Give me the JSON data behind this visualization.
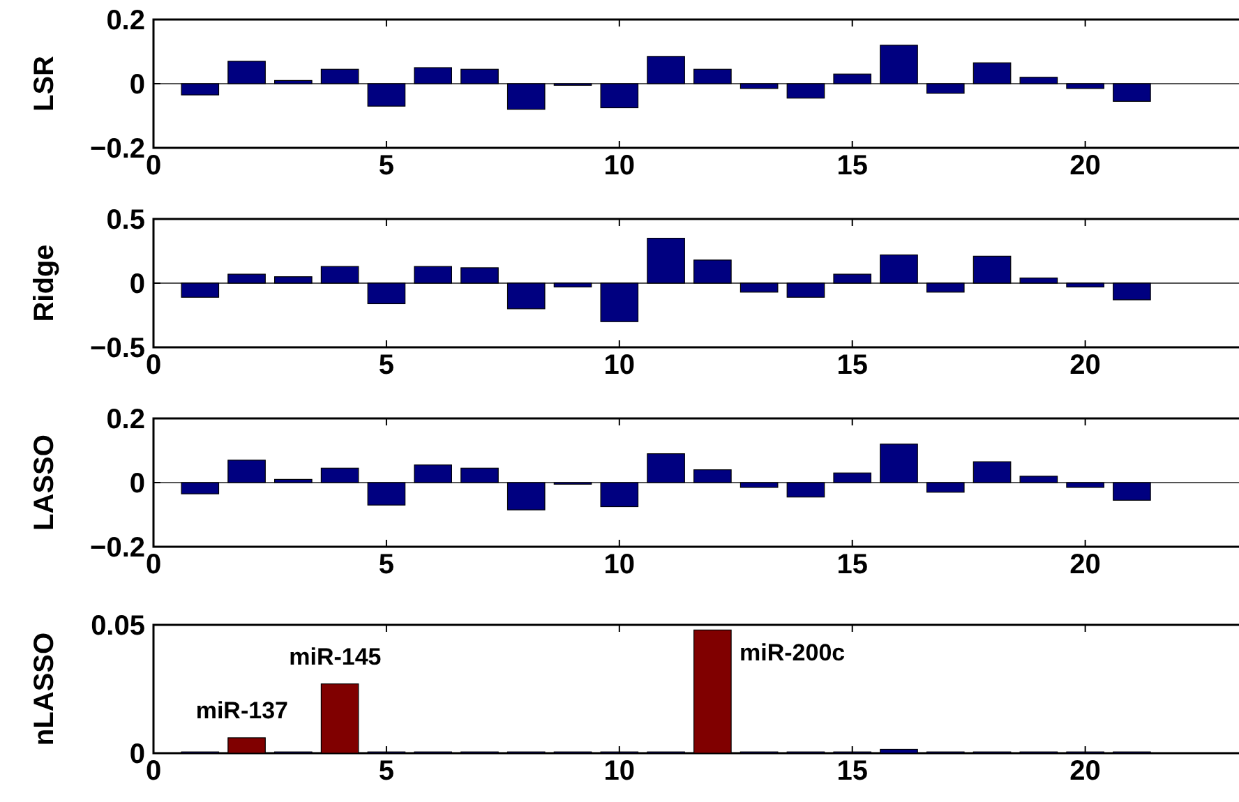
{
  "chart_data": [
    {
      "type": "bar",
      "ylabel": "LSR",
      "x": [
        1,
        2,
        3,
        4,
        5,
        6,
        7,
        8,
        9,
        10,
        11,
        12,
        13,
        14,
        15,
        16,
        17,
        18,
        19,
        20,
        21
      ],
      "values": [
        -0.035,
        0.07,
        0.01,
        0.045,
        -0.07,
        0.05,
        0.045,
        -0.08,
        -0.005,
        -0.075,
        0.085,
        0.045,
        -0.015,
        -0.045,
        0.03,
        0.12,
        -0.03,
        0.065,
        0.02,
        -0.015,
        -0.055
      ],
      "color": "#000080",
      "xlim": [
        0,
        23.3
      ],
      "xticks": [
        0,
        5,
        10,
        15,
        20
      ],
      "ylim": [
        -0.2,
        0.2
      ],
      "yticks": [
        -0.2,
        0,
        0.2
      ],
      "ref_lines": [
        {
          "axis": "y",
          "value": 0,
          "color": "#555555"
        }
      ]
    },
    {
      "type": "bar",
      "ylabel": "Ridge",
      "x": [
        1,
        2,
        3,
        4,
        5,
        6,
        7,
        8,
        9,
        10,
        11,
        12,
        13,
        14,
        15,
        16,
        17,
        18,
        19,
        20,
        21
      ],
      "values": [
        -0.11,
        0.07,
        0.05,
        0.13,
        -0.16,
        0.13,
        0.12,
        -0.2,
        -0.03,
        -0.3,
        0.35,
        0.18,
        -0.07,
        -0.11,
        0.07,
        0.22,
        -0.07,
        0.21,
        0.04,
        -0.03,
        -0.13
      ],
      "color": "#000080",
      "xlim": [
        0,
        23.3
      ],
      "xticks": [
        0,
        5,
        10,
        15,
        20
      ],
      "ylim": [
        -0.5,
        0.5
      ],
      "yticks": [
        -0.5,
        0,
        0.5
      ],
      "ref_lines": [
        {
          "axis": "y",
          "value": 0,
          "color": "#555555"
        }
      ]
    },
    {
      "type": "bar",
      "ylabel": "LASSO",
      "x": [
        1,
        2,
        3,
        4,
        5,
        6,
        7,
        8,
        9,
        10,
        11,
        12,
        13,
        14,
        15,
        16,
        17,
        18,
        19,
        20,
        21
      ],
      "values": [
        -0.035,
        0.07,
        0.01,
        0.045,
        -0.07,
        0.055,
        0.045,
        -0.085,
        -0.005,
        -0.075,
        0.09,
        0.04,
        -0.015,
        -0.045,
        0.03,
        0.12,
        -0.03,
        0.065,
        0.02,
        -0.015,
        -0.055
      ],
      "color": "#000080",
      "xlim": [
        0,
        23.3
      ],
      "xticks": [
        0,
        5,
        10,
        15,
        20
      ],
      "ylim": [
        -0.2,
        0.2
      ],
      "yticks": [
        -0.2,
        0,
        0.2
      ],
      "ref_lines": [
        {
          "axis": "y",
          "value": 0,
          "color": "#555555"
        }
      ]
    },
    {
      "type": "bar",
      "ylabel": "nLASSO",
      "x": [
        1,
        2,
        3,
        4,
        5,
        6,
        7,
        8,
        9,
        10,
        11,
        12,
        13,
        14,
        15,
        16,
        17,
        18,
        19,
        20,
        21
      ],
      "values": [
        0.0005,
        0.006,
        0.0005,
        0.027,
        0.0005,
        0.0005,
        0.0005,
        0.0005,
        0.0005,
        0.0005,
        0.0005,
        0.048,
        0.0005,
        0.0005,
        0.0005,
        0.0015,
        0.0005,
        0.0005,
        0.0005,
        0.0005,
        0.0005
      ],
      "colors": [
        "#000080",
        "#800000",
        "#000080",
        "#800000",
        "#000080",
        "#000080",
        "#000080",
        "#000080",
        "#000080",
        "#000080",
        "#000080",
        "#800000",
        "#000080",
        "#000080",
        "#000080",
        "#000080",
        "#000080",
        "#000080",
        "#000080",
        "#000080",
        "#000080"
      ],
      "xlim": [
        0,
        23.3
      ],
      "xticks": [
        0,
        5,
        10,
        15,
        20
      ],
      "ylim": [
        0,
        0.05
      ],
      "yticks": [
        0,
        0.05
      ],
      "annotations": [
        {
          "text": "miR-137",
          "x": 2,
          "y": 0.006
        },
        {
          "text": "miR-145",
          "x": 4,
          "y": 0.027
        },
        {
          "text": "miR-200c",
          "x": 12,
          "y": 0.048
        }
      ]
    }
  ]
}
